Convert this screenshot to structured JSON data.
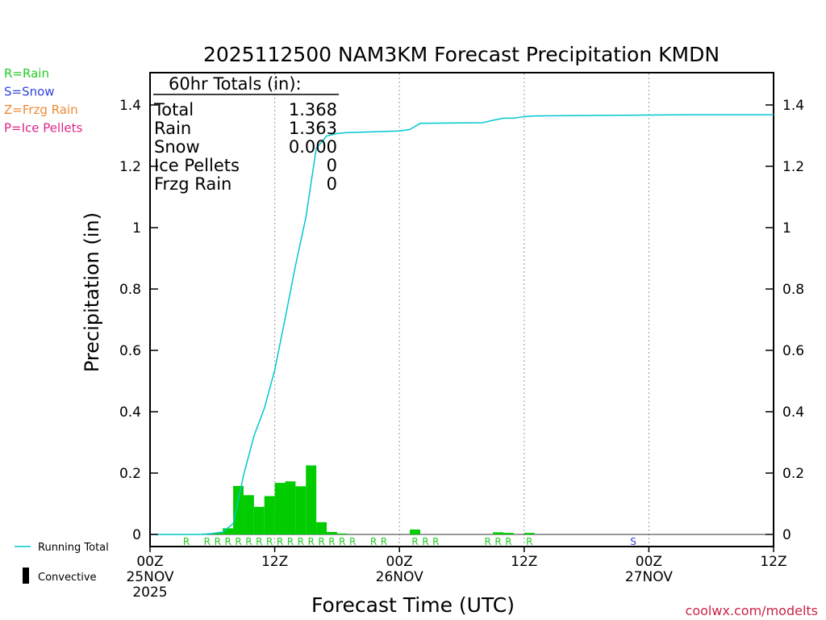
{
  "chart_data": {
    "type": "bar",
    "title": "2025112500 NAM3KM Forecast Precipitation KMDN",
    "xlabel": "Forecast Time (UTC)",
    "ylabel": "Precipitation (in)",
    "ylim": [
      0,
      1.5
    ],
    "xlim_hours": [
      0,
      60
    ],
    "y_ticks": [
      0,
      0.2,
      0.4,
      0.6,
      0.8,
      1,
      1.2,
      1.4
    ],
    "y_tick_labels": [
      "0",
      "0.2",
      "0.4",
      "0.6",
      "0.8",
      "1",
      "1.2",
      "1.4"
    ],
    "x_ticks": [
      {
        "hour": 0,
        "line1": "00Z",
        "line2": "25NOV",
        "line3": "2025"
      },
      {
        "hour": 12,
        "line1": "12Z",
        "line2": "",
        "line3": ""
      },
      {
        "hour": 24,
        "line1": "00Z",
        "line2": "26NOV",
        "line3": ""
      },
      {
        "hour": 36,
        "line1": "12Z",
        "line2": "",
        "line3": ""
      },
      {
        "hour": 48,
        "line1": "00Z",
        "line2": "27NOV",
        "line3": ""
      },
      {
        "hour": 60,
        "line1": "12Z",
        "line2": "",
        "line3": ""
      }
    ],
    "gridlines_hours": [
      12,
      24,
      36,
      48
    ],
    "bar_color": "#00cc00",
    "line_color": "#00c8d0",
    "series": [
      {
        "name": "Hourly Precipitation",
        "type": "bar",
        "hours": [
          6,
          7,
          8,
          9,
          10,
          11,
          12,
          13,
          14,
          15,
          16,
          17,
          18,
          19,
          26,
          34,
          35,
          37
        ],
        "values": [
          0.003,
          0.005,
          0.02,
          0.158,
          0.128,
          0.09,
          0.125,
          0.168,
          0.173,
          0.157,
          0.225,
          0.04,
          0.008,
          0.003,
          0.016,
          0.007,
          0.005,
          0.005
        ]
      },
      {
        "name": "Running Total",
        "type": "line",
        "hours": [
          0,
          5,
          6,
          7,
          8,
          9,
          10,
          11,
          12,
          13,
          14,
          15,
          16,
          17,
          18,
          19,
          20,
          24,
          25,
          26,
          32,
          33,
          34,
          35,
          36,
          37,
          40,
          44,
          48,
          52,
          56,
          60
        ],
        "values": [
          0,
          0,
          0.003,
          0.008,
          0.035,
          0.193,
          0.321,
          0.411,
          0.536,
          0.704,
          0.877,
          1.034,
          1.259,
          1.299,
          1.307,
          1.31,
          1.311,
          1.315,
          1.32,
          1.34,
          1.342,
          1.35,
          1.357,
          1.357,
          1.362,
          1.364,
          1.365,
          1.366,
          1.367,
          1.368,
          1.368,
          1.368
        ]
      }
    ],
    "ptype_markers": [
      {
        "hour": 4,
        "letter": "R"
      },
      {
        "hour": 6,
        "letter": "R"
      },
      {
        "hour": 7,
        "letter": "R"
      },
      {
        "hour": 8,
        "letter": "R"
      },
      {
        "hour": 9,
        "letter": "R"
      },
      {
        "hour": 10,
        "letter": "R"
      },
      {
        "hour": 11,
        "letter": "R"
      },
      {
        "hour": 12,
        "letter": "R"
      },
      {
        "hour": 13,
        "letter": "R"
      },
      {
        "hour": 14,
        "letter": "R"
      },
      {
        "hour": 15,
        "letter": "R"
      },
      {
        "hour": 16,
        "letter": "R"
      },
      {
        "hour": 17,
        "letter": "R"
      },
      {
        "hour": 18,
        "letter": "R"
      },
      {
        "hour": 19,
        "letter": "R"
      },
      {
        "hour": 20,
        "letter": "R"
      },
      {
        "hour": 22,
        "letter": "R"
      },
      {
        "hour": 23,
        "letter": "R"
      },
      {
        "hour": 26,
        "letter": "R"
      },
      {
        "hour": 27,
        "letter": "R"
      },
      {
        "hour": 28,
        "letter": "R"
      },
      {
        "hour": 33,
        "letter": "R"
      },
      {
        "hour": 34,
        "letter": "R"
      },
      {
        "hour": 35,
        "letter": "R"
      },
      {
        "hour": 37,
        "letter": "R"
      },
      {
        "hour": 47,
        "letter": "S"
      }
    ],
    "ptype_colors": {
      "R": "#22cc22",
      "S": "#3344dd"
    },
    "totals": {
      "header": "60hr Totals (in):",
      "rows": [
        {
          "label": "Total",
          "value": "1.368"
        },
        {
          "label": "Rain",
          "value": "1.363"
        },
        {
          "label": "Snow",
          "value": "0.000"
        },
        {
          "label": "Ice Pellets",
          "value": "0"
        },
        {
          "label": "Frzg Rain",
          "value": "0"
        }
      ]
    },
    "ptype_legend": [
      {
        "text": "R=Rain",
        "color": "#22cc22"
      },
      {
        "text": "S=Snow",
        "color": "#3344dd"
      },
      {
        "text": "Z=Frzg Rain",
        "color": "#ee8833"
      },
      {
        "text": "P=Ice Pellets",
        "color": "#dd2288"
      }
    ],
    "series_legend": {
      "running_total": "Running Total",
      "convective": "Convective"
    },
    "credit": "coolwx.com/modelts",
    "credit_color": "#cc2244"
  }
}
